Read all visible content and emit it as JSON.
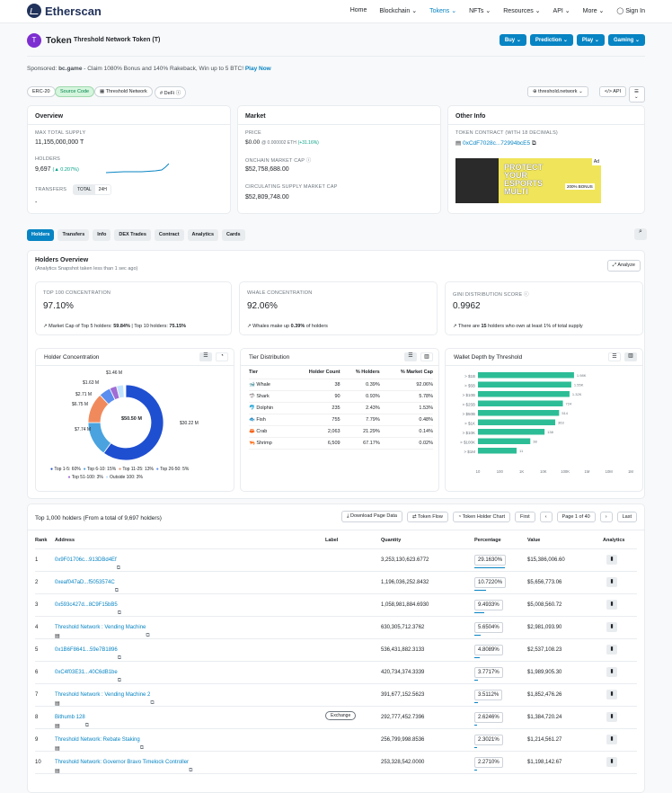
{
  "nav": {
    "logo": "Etherscan",
    "items": [
      "Home",
      "Blockchain",
      "Tokens",
      "NFTs",
      "Resources",
      "API",
      "More",
      "Sign In"
    ]
  },
  "token": {
    "label": "Token",
    "name": "Threshold Network Token (T)",
    "buttons": [
      "Buy",
      "Prediction",
      "Play",
      "Gaming"
    ]
  },
  "sponsored": {
    "prefix": "Sponsored:",
    "brand": "bc.game",
    "text": "- Claim 1080% Bonus and 140% Rakeback, Win up to 5 BTC!",
    "cta": "Play Now"
  },
  "tags": [
    "ERC-20",
    "Source Code",
    "Threshold Network",
    "DeFi"
  ],
  "tagright": {
    "site": "threshold.network",
    "api": "API"
  },
  "overview": {
    "title": "Overview",
    "supply_label": "MAX TOTAL SUPPLY",
    "supply": "11,155,000,000 T",
    "holders_label": "HOLDERS",
    "holders": "9,697",
    "holders_change": "(▲ 0.207%)",
    "transfers_label": "TRANSFERS",
    "t_total": "TOTAL",
    "t_24h": "24H",
    "transfers_value": "-"
  },
  "market": {
    "title": "Market",
    "price_label": "PRICE",
    "price": "$0.00",
    "price_eth": "@ 0.000002 ETH",
    "price_change": "(+31.16%)",
    "mcap_label": "ONCHAIN MARKET CAP",
    "mcap": "$52,758,688.00",
    "csmcap_label": "CIRCULATING SUPPLY MARKET CAP",
    "csmcap": "$52,809,748.00"
  },
  "other": {
    "title": "Other Info",
    "contract_label": "TOKEN CONTRACT (WITH 18 DECIMALS)",
    "contract": "0xCdF7028c...72994bcE5",
    "ad": "Ad",
    "ad_text": "PROTECT YOUR ESPORTS MULTI",
    "ad_sub": "200% BONUS"
  },
  "tabs": [
    "Holders",
    "Transfers",
    "Info",
    "DEX Trades",
    "Contract",
    "Analytics",
    "Cards"
  ],
  "holders_overview": {
    "title": "Holders Overview",
    "sub": "(Analytics Snapshot taken less than 1 sec ago)",
    "analyze": "Analyze",
    "top100_label": "TOP 100 CONCENTRATION",
    "top100": "97.10%",
    "top100_note": "Market Cap of Top 5 holders:",
    "top5": "59.84%",
    "top10_note": "| Top 10 holders:",
    "top10": "75.15%",
    "whale_label": "WHALE CONCENTRATION",
    "whale": "92.06%",
    "whale_note": "Whales make up",
    "whale_pct": "0.39%",
    "whale_note2": "of holders",
    "gini_label": "GINI DISTRIBUTION SCORE",
    "gini": "0.9962",
    "gini_note": "There are",
    "gini_n": "15",
    "gini_note2": "holders who own at least 1% of total supply"
  },
  "concentration": {
    "title": "Holder Concentration",
    "center": "$50.50 M",
    "labels": [
      "$1.46 M",
      "$1.63 M",
      "$2.71 M",
      "$6.75 M",
      "$7.74 M",
      "$30.22 M"
    ],
    "legend": [
      "Top 1-5: 60%",
      "Top 6-10: 15%",
      "Top 11-25: 13%",
      "Top 26-50: 5%",
      "Top 51-100: 3%",
      "Outside 100: 3%"
    ],
    "colors": [
      "#1f4fd1",
      "#4aa3df",
      "#f08a5d",
      "#5b8def",
      "#a06cd5",
      "#bfe3ff"
    ]
  },
  "tier": {
    "title": "Tier Distribution",
    "headers": [
      "Tier",
      "Holder Count",
      "% Holders",
      "% Market Cap"
    ],
    "rows": [
      [
        "Whale",
        "38",
        "0.39%",
        "92.06%"
      ],
      [
        "Shark",
        "90",
        "0.93%",
        "5.78%"
      ],
      [
        "Dolphin",
        "235",
        "2.43%",
        "1.53%"
      ],
      [
        "Fish",
        "755",
        "7.79%",
        "0.48%"
      ],
      [
        "Crab",
        "2,063",
        "21.29%",
        "0.14%"
      ],
      [
        "Shrimp",
        "6,509",
        "67.17%",
        "0.02%"
      ]
    ]
  },
  "chart_data": {
    "type": "bar",
    "title": "Wallet Depth by Threshold",
    "categories": [
      "> $1B",
      "> $5B",
      "> $10B",
      "> $25B",
      "> $50B",
      "> $1K",
      "> $10K",
      "> $100K",
      "> $1M"
    ],
    "values": [
      1980,
      1550,
      1320,
      724,
      514,
      363,
      138,
      38,
      11
    ],
    "value_labels": [
      "1.98K",
      "1.55K",
      "1.32K",
      "724",
      "514",
      "363",
      "138",
      "38",
      "11"
    ],
    "xticks": [
      "10",
      "100",
      "1K",
      "10K",
      "100K",
      "1M",
      "10M",
      "1M"
    ]
  },
  "table": {
    "title": "Top 1,000 holders (From a total of 9,697 holders)",
    "buttons": [
      "Download Page Data",
      "Token Flow",
      "Token Holder Chart"
    ],
    "pager": [
      "First",
      "Page 1 of 40",
      "Last"
    ],
    "headers": [
      "Rank",
      "Address",
      "Label",
      "Quantity",
      "Percentage",
      "Value",
      "Analytics"
    ],
    "rows": [
      [
        "1",
        "0x9F01706c...913DBd4Ef",
        "",
        "3,253,130,623.6772",
        "29.1630%",
        "$15,386,006.60"
      ],
      [
        "2",
        "0xeaf047aD...f5053574C",
        "",
        "1,196,036,252.8432",
        "10.7220%",
        "$5,656,773.06"
      ],
      [
        "3",
        "0x593c427d...8C9F15bB5",
        "",
        "1,058,981,884.6930",
        "9.4933%",
        "$5,008,560.72"
      ],
      [
        "4",
        "Threshold Network : Vending Machine",
        "",
        "630,305,712.3762",
        "5.6504%",
        "$2,981,093.90"
      ],
      [
        "5",
        "0x1B6F8641...59e7B1896",
        "",
        "536,431,882.3133",
        "4.8089%",
        "$2,537,108.23"
      ],
      [
        "6",
        "0xC4f03E31...40C6dB1be",
        "",
        "420,734,374.3339",
        "3.7717%",
        "$1,989,905.30"
      ],
      [
        "7",
        "Threshold Network : Vending Machine 2",
        "",
        "391,677,152.5623",
        "3.5112%",
        "$1,852,476.26"
      ],
      [
        "8",
        "Bithumb 128",
        "Exchange",
        "292,777,452.7396",
        "2.6246%",
        "$1,384,720.24"
      ],
      [
        "9",
        "Threshold Network: Rebate Staking",
        "",
        "256,799,998.8536",
        "2.3021%",
        "$1,214,561.27"
      ],
      [
        "10",
        "Threshold Network: Governor Bravo Timelock Controller",
        "",
        "253,328,542.0000",
        "2.2710%",
        "$1,198,142.67"
      ]
    ]
  }
}
